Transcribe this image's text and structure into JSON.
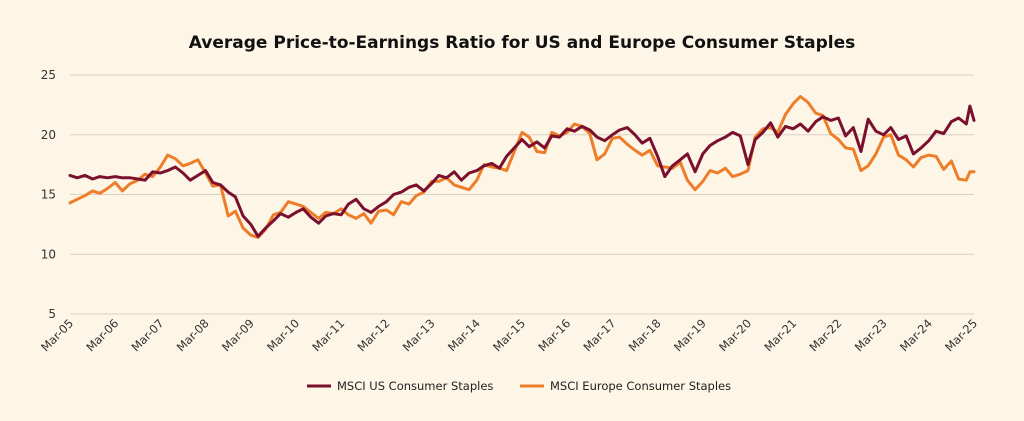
{
  "chart_data": {
    "type": "line",
    "title": "Average Price-to-Earnings Ratio for US and Europe Consumer Staples",
    "xlabel": "",
    "ylabel": "",
    "ylim": [
      5,
      25
    ],
    "yticks": [
      5,
      10,
      15,
      20,
      25
    ],
    "xlim": [
      2005.17,
      2025.17
    ],
    "x_tick_labels": [
      "Mar-05",
      "Mar-06",
      "Mar-07",
      "Mar-08",
      "Mar-09",
      "Mar-10",
      "Mar-11",
      "Mar-12",
      "Mar-13",
      "Mar-14",
      "Mar-15",
      "Mar-16",
      "Mar-17",
      "Mar-18",
      "Mar-19",
      "Mar-20",
      "Mar-21",
      "Mar-22",
      "Mar-23",
      "Mar-24",
      "Mar-25"
    ],
    "grid": "horizontal",
    "legend_position": "bottom",
    "series": [
      {
        "name": "MSCI US Consumer Staples",
        "color": "#7a0f2e",
        "points": [
          [
            2005.17,
            16.6
          ],
          [
            2005.33,
            16.4
          ],
          [
            2005.5,
            16.6
          ],
          [
            2005.67,
            16.3
          ],
          [
            2005.83,
            16.5
          ],
          [
            2006.0,
            16.4
          ],
          [
            2006.17,
            16.5
          ],
          [
            2006.33,
            16.4
          ],
          [
            2006.5,
            16.4
          ],
          [
            2006.67,
            16.3
          ],
          [
            2006.83,
            16.2
          ],
          [
            2007.0,
            16.9
          ],
          [
            2007.17,
            16.8
          ],
          [
            2007.33,
            17.0
          ],
          [
            2007.5,
            17.3
          ],
          [
            2007.67,
            16.8
          ],
          [
            2007.83,
            16.2
          ],
          [
            2008.0,
            16.6
          ],
          [
            2008.17,
            17.0
          ],
          [
            2008.33,
            16.0
          ],
          [
            2008.5,
            15.8
          ],
          [
            2008.67,
            15.2
          ],
          [
            2008.83,
            14.8
          ],
          [
            2009.0,
            13.2
          ],
          [
            2009.17,
            12.5
          ],
          [
            2009.33,
            11.5
          ],
          [
            2009.5,
            12.2
          ],
          [
            2009.67,
            12.8
          ],
          [
            2009.83,
            13.4
          ],
          [
            2010.0,
            13.1
          ],
          [
            2010.17,
            13.5
          ],
          [
            2010.33,
            13.8
          ],
          [
            2010.5,
            13.1
          ],
          [
            2010.67,
            12.6
          ],
          [
            2010.83,
            13.2
          ],
          [
            2011.0,
            13.4
          ],
          [
            2011.17,
            13.3
          ],
          [
            2011.33,
            14.2
          ],
          [
            2011.5,
            14.6
          ],
          [
            2011.67,
            13.8
          ],
          [
            2011.83,
            13.5
          ],
          [
            2012.0,
            14.0
          ],
          [
            2012.17,
            14.4
          ],
          [
            2012.33,
            15.0
          ],
          [
            2012.5,
            15.2
          ],
          [
            2012.67,
            15.6
          ],
          [
            2012.83,
            15.8
          ],
          [
            2013.0,
            15.3
          ],
          [
            2013.17,
            15.9
          ],
          [
            2013.33,
            16.6
          ],
          [
            2013.5,
            16.4
          ],
          [
            2013.67,
            16.9
          ],
          [
            2013.83,
            16.2
          ],
          [
            2014.0,
            16.8
          ],
          [
            2014.17,
            17.0
          ],
          [
            2014.33,
            17.4
          ],
          [
            2014.5,
            17.6
          ],
          [
            2014.67,
            17.2
          ],
          [
            2014.83,
            18.2
          ],
          [
            2015.0,
            18.9
          ],
          [
            2015.17,
            19.6
          ],
          [
            2015.33,
            19.0
          ],
          [
            2015.5,
            19.4
          ],
          [
            2015.67,
            18.9
          ],
          [
            2015.83,
            19.9
          ],
          [
            2016.0,
            19.8
          ],
          [
            2016.17,
            20.5
          ],
          [
            2016.33,
            20.3
          ],
          [
            2016.5,
            20.7
          ],
          [
            2016.67,
            20.4
          ],
          [
            2016.83,
            19.8
          ],
          [
            2017.0,
            19.5
          ],
          [
            2017.17,
            20.0
          ],
          [
            2017.33,
            20.4
          ],
          [
            2017.5,
            20.6
          ],
          [
            2017.67,
            20.0
          ],
          [
            2017.83,
            19.3
          ],
          [
            2018.0,
            19.7
          ],
          [
            2018.17,
            18.2
          ],
          [
            2018.33,
            16.5
          ],
          [
            2018.5,
            17.4
          ],
          [
            2018.67,
            17.9
          ],
          [
            2018.83,
            18.4
          ],
          [
            2019.0,
            16.9
          ],
          [
            2019.17,
            18.4
          ],
          [
            2019.33,
            19.1
          ],
          [
            2019.5,
            19.5
          ],
          [
            2019.67,
            19.8
          ],
          [
            2019.83,
            20.2
          ],
          [
            2020.0,
            19.9
          ],
          [
            2020.17,
            17.5
          ],
          [
            2020.33,
            19.6
          ],
          [
            2020.5,
            20.2
          ],
          [
            2020.67,
            21.0
          ],
          [
            2020.83,
            19.8
          ],
          [
            2021.0,
            20.7
          ],
          [
            2021.17,
            20.5
          ],
          [
            2021.33,
            20.9
          ],
          [
            2021.5,
            20.3
          ],
          [
            2021.67,
            21.1
          ],
          [
            2021.83,
            21.5
          ],
          [
            2022.0,
            21.2
          ],
          [
            2022.17,
            21.4
          ],
          [
            2022.33,
            19.9
          ],
          [
            2022.5,
            20.6
          ],
          [
            2022.67,
            18.6
          ],
          [
            2022.83,
            21.3
          ],
          [
            2023.0,
            20.3
          ],
          [
            2023.17,
            20.0
          ],
          [
            2023.33,
            20.6
          ],
          [
            2023.5,
            19.6
          ],
          [
            2023.67,
            19.9
          ],
          [
            2023.83,
            18.4
          ],
          [
            2024.0,
            18.9
          ],
          [
            2024.17,
            19.5
          ],
          [
            2024.33,
            20.3
          ],
          [
            2024.5,
            20.1
          ],
          [
            2024.67,
            21.1
          ],
          [
            2024.83,
            21.4
          ],
          [
            2025.0,
            20.9
          ],
          [
            2025.08,
            22.4
          ],
          [
            2025.17,
            21.2
          ]
        ]
      },
      {
        "name": "MSCI Europe Consumer Staples",
        "color": "#ee7d2a",
        "points": [
          [
            2005.17,
            14.3
          ],
          [
            2005.33,
            14.6
          ],
          [
            2005.5,
            14.9
          ],
          [
            2005.67,
            15.3
          ],
          [
            2005.83,
            15.1
          ],
          [
            2006.0,
            15.5
          ],
          [
            2006.17,
            16.0
          ],
          [
            2006.33,
            15.3
          ],
          [
            2006.5,
            15.9
          ],
          [
            2006.67,
            16.2
          ],
          [
            2006.83,
            16.7
          ],
          [
            2007.0,
            16.5
          ],
          [
            2007.17,
            17.3
          ],
          [
            2007.33,
            18.3
          ],
          [
            2007.5,
            18.0
          ],
          [
            2007.67,
            17.4
          ],
          [
            2007.83,
            17.6
          ],
          [
            2008.0,
            17.9
          ],
          [
            2008.17,
            16.8
          ],
          [
            2008.33,
            15.7
          ],
          [
            2008.5,
            15.8
          ],
          [
            2008.67,
            13.2
          ],
          [
            2008.83,
            13.6
          ],
          [
            2009.0,
            12.2
          ],
          [
            2009.17,
            11.6
          ],
          [
            2009.33,
            11.4
          ],
          [
            2009.5,
            12.1
          ],
          [
            2009.67,
            13.3
          ],
          [
            2009.83,
            13.5
          ],
          [
            2010.0,
            14.4
          ],
          [
            2010.17,
            14.2
          ],
          [
            2010.33,
            14.0
          ],
          [
            2010.5,
            13.5
          ],
          [
            2010.67,
            13.0
          ],
          [
            2010.83,
            13.5
          ],
          [
            2011.0,
            13.4
          ],
          [
            2011.17,
            13.8
          ],
          [
            2011.33,
            13.3
          ],
          [
            2011.5,
            13.0
          ],
          [
            2011.67,
            13.4
          ],
          [
            2011.83,
            12.6
          ],
          [
            2012.0,
            13.6
          ],
          [
            2012.17,
            13.7
          ],
          [
            2012.33,
            13.3
          ],
          [
            2012.5,
            14.4
          ],
          [
            2012.67,
            14.2
          ],
          [
            2012.83,
            14.9
          ],
          [
            2013.0,
            15.2
          ],
          [
            2013.17,
            16.1
          ],
          [
            2013.33,
            16.1
          ],
          [
            2013.5,
            16.4
          ],
          [
            2013.67,
            15.8
          ],
          [
            2013.83,
            15.6
          ],
          [
            2014.0,
            15.4
          ],
          [
            2014.17,
            16.2
          ],
          [
            2014.33,
            17.5
          ],
          [
            2014.5,
            17.3
          ],
          [
            2014.67,
            17.2
          ],
          [
            2014.83,
            17.0
          ],
          [
            2015.0,
            18.6
          ],
          [
            2015.17,
            20.2
          ],
          [
            2015.33,
            19.8
          ],
          [
            2015.5,
            18.6
          ],
          [
            2015.67,
            18.5
          ],
          [
            2015.83,
            20.2
          ],
          [
            2016.0,
            19.9
          ],
          [
            2016.17,
            20.2
          ],
          [
            2016.33,
            20.9
          ],
          [
            2016.5,
            20.7
          ],
          [
            2016.67,
            20.1
          ],
          [
            2016.83,
            17.9
          ],
          [
            2017.0,
            18.4
          ],
          [
            2017.17,
            19.7
          ],
          [
            2017.33,
            19.8
          ],
          [
            2017.5,
            19.2
          ],
          [
            2017.67,
            18.7
          ],
          [
            2017.83,
            18.3
          ],
          [
            2018.0,
            18.7
          ],
          [
            2018.17,
            17.4
          ],
          [
            2018.33,
            17.3
          ],
          [
            2018.5,
            17.2
          ],
          [
            2018.67,
            17.7
          ],
          [
            2018.83,
            16.2
          ],
          [
            2019.0,
            15.4
          ],
          [
            2019.17,
            16.1
          ],
          [
            2019.33,
            17.0
          ],
          [
            2019.5,
            16.8
          ],
          [
            2019.67,
            17.2
          ],
          [
            2019.83,
            16.5
          ],
          [
            2020.0,
            16.7
          ],
          [
            2020.17,
            17.0
          ],
          [
            2020.33,
            19.8
          ],
          [
            2020.5,
            20.5
          ],
          [
            2020.67,
            20.6
          ],
          [
            2020.83,
            20.2
          ],
          [
            2021.0,
            21.7
          ],
          [
            2021.17,
            22.6
          ],
          [
            2021.33,
            23.2
          ],
          [
            2021.5,
            22.7
          ],
          [
            2021.67,
            21.8
          ],
          [
            2021.83,
            21.6
          ],
          [
            2022.0,
            20.1
          ],
          [
            2022.17,
            19.6
          ],
          [
            2022.33,
            18.9
          ],
          [
            2022.5,
            18.8
          ],
          [
            2022.67,
            17.0
          ],
          [
            2022.83,
            17.4
          ],
          [
            2023.0,
            18.4
          ],
          [
            2023.17,
            19.8
          ],
          [
            2023.33,
            20.0
          ],
          [
            2023.5,
            18.3
          ],
          [
            2023.67,
            17.9
          ],
          [
            2023.83,
            17.3
          ],
          [
            2024.0,
            18.1
          ],
          [
            2024.17,
            18.3
          ],
          [
            2024.33,
            18.2
          ],
          [
            2024.5,
            17.1
          ],
          [
            2024.67,
            17.8
          ],
          [
            2024.83,
            16.3
          ],
          [
            2025.0,
            16.2
          ],
          [
            2025.08,
            16.9
          ],
          [
            2025.17,
            16.9
          ]
        ]
      }
    ]
  }
}
